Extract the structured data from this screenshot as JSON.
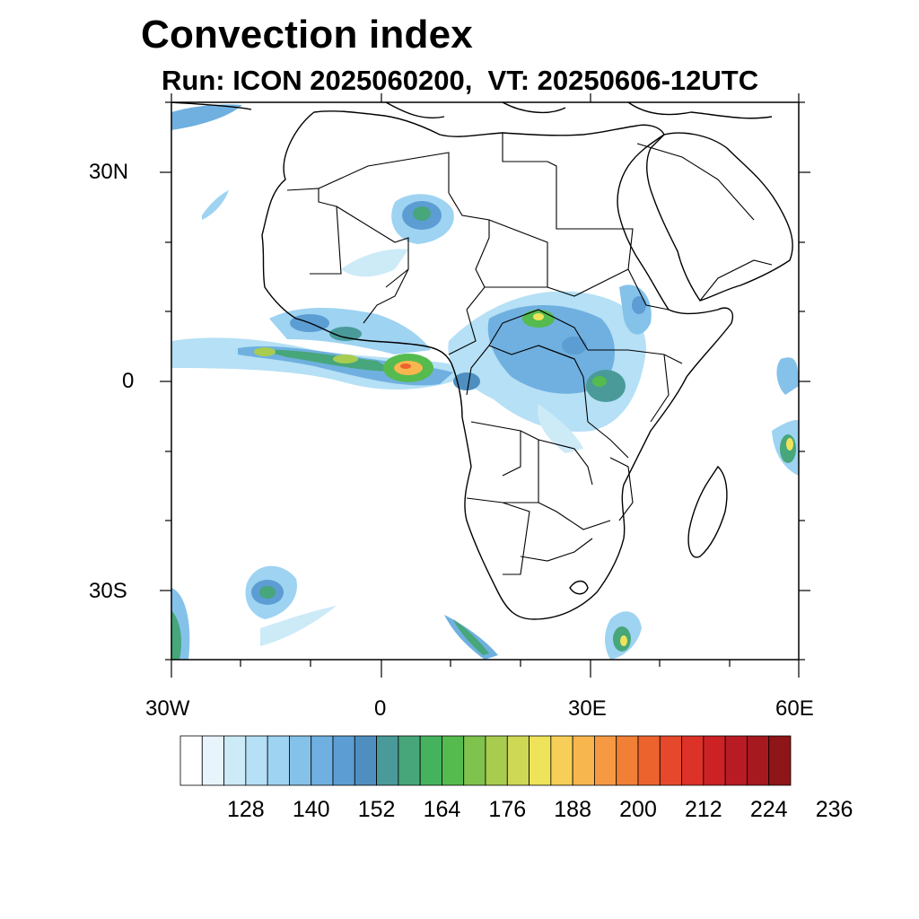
{
  "title": "Convection index",
  "subtitle": "Run: ICON 2025060200,  VT: 20250606-12UTC",
  "map": {
    "lon_range": [
      -30,
      60
    ],
    "lat_range": [
      -40,
      40
    ],
    "lat_ticks": [
      "30N",
      "0",
      "30S"
    ],
    "lon_ticks": [
      "30W",
      "0",
      "30E",
      "60E"
    ]
  },
  "colorbar": {
    "colors": [
      "#ffffff",
      "#e8f4fb",
      "#cdeaf7",
      "#b5e0f5",
      "#9ed3f2",
      "#85c2ea",
      "#6fb0e0",
      "#5c9dd3",
      "#4f8fc0",
      "#4a9a9a",
      "#47a67a",
      "#45b35e",
      "#55bb4e",
      "#7fc24d",
      "#a8cc50",
      "#cfd855",
      "#eee35a",
      "#f7cf58",
      "#f8b64f",
      "#f59a42",
      "#f17f36",
      "#ec632e",
      "#e5482a",
      "#dc3228",
      "#cc2226",
      "#b91b24",
      "#a6191f",
      "#8e1518"
    ],
    "labels": [
      "128",
      "140",
      "152",
      "164",
      "176",
      "188",
      "200",
      "212",
      "224",
      "236"
    ]
  }
}
